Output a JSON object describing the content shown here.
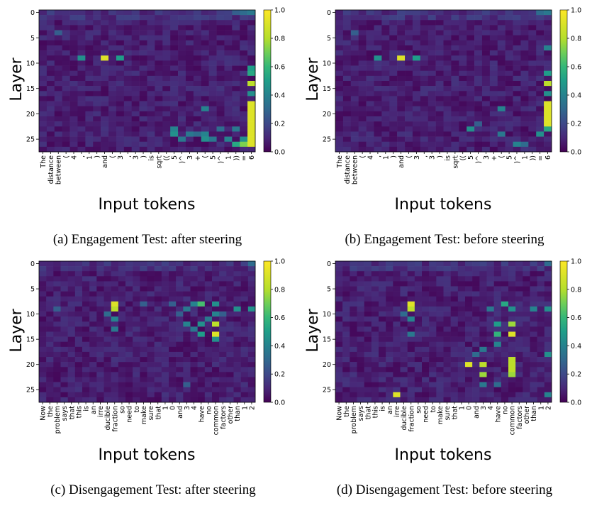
{
  "chart_data": [
    {
      "type": "heatmap",
      "caption": "(a) Engagement Test: after steering",
      "xlabel": "Input tokens",
      "ylabel": "Layer",
      "x_tokens": [
        "The",
        "distance",
        "between",
        "(",
        "4",
        ",",
        "1",
        ")",
        "and",
        "(",
        "3",
        ",",
        "3",
        ")",
        "is",
        "sqrt",
        "((",
        "5",
        ")^",
        "3",
        "+",
        "(",
        "5",
        ")^",
        "1",
        "))",
        "=",
        "6"
      ],
      "y_ticks": [
        "0",
        "5",
        "10",
        "15",
        "20",
        "25"
      ],
      "layers": 28,
      "colorbar": {
        "min": 0.0,
        "max": 1.0,
        "ticks": [
          "0.0",
          "0.2",
          "0.4",
          "0.6",
          "0.8",
          "1.0"
        ]
      },
      "hotspots": [
        {
          "x": 8,
          "y": 9,
          "v": 0.95
        },
        {
          "x": 10,
          "y": 9,
          "v": 0.55
        },
        {
          "x": 5,
          "y": 9,
          "v": 0.5
        },
        {
          "x": 27,
          "y": 18,
          "v": 0.95
        },
        {
          "x": 27,
          "y": 19,
          "v": 0.95
        },
        {
          "x": 27,
          "y": 20,
          "v": 0.95
        },
        {
          "x": 27,
          "y": 21,
          "v": 0.95
        },
        {
          "x": 27,
          "y": 22,
          "v": 0.95
        },
        {
          "x": 27,
          "y": 23,
          "v": 0.95
        },
        {
          "x": 27,
          "y": 24,
          "v": 0.95
        },
        {
          "x": 27,
          "y": 25,
          "v": 0.95
        },
        {
          "x": 27,
          "y": 26,
          "v": 0.95
        },
        {
          "x": 27,
          "y": 14,
          "v": 0.9
        },
        {
          "x": 27,
          "y": 11,
          "v": 0.55
        },
        {
          "x": 27,
          "y": 12,
          "v": 0.6
        },
        {
          "x": 27,
          "y": 16,
          "v": 0.5
        },
        {
          "x": 26,
          "y": 26,
          "v": 0.8
        },
        {
          "x": 25,
          "y": 26,
          "v": 0.6
        },
        {
          "x": 26,
          "y": 25,
          "v": 0.5
        },
        {
          "x": 17,
          "y": 23,
          "v": 0.45
        },
        {
          "x": 17,
          "y": 24,
          "v": 0.5
        },
        {
          "x": 18,
          "y": 25,
          "v": 0.4
        },
        {
          "x": 21,
          "y": 24,
          "v": 0.45
        },
        {
          "x": 21,
          "y": 25,
          "v": 0.5
        },
        {
          "x": 22,
          "y": 25,
          "v": 0.4
        },
        {
          "x": 24,
          "y": 25,
          "v": 0.45
        },
        {
          "x": 23,
          "y": 23,
          "v": 0.35
        },
        {
          "x": 25,
          "y": 23,
          "v": 0.4
        },
        {
          "x": 21,
          "y": 19,
          "v": 0.45
        },
        {
          "x": 19,
          "y": 24,
          "v": 0.4
        },
        {
          "x": 20,
          "y": 24,
          "v": 0.35
        },
        {
          "x": 2,
          "y": 4,
          "v": 0.3
        },
        {
          "x": 26,
          "y": 0,
          "v": 0.35
        },
        {
          "x": 27,
          "y": 0,
          "v": 0.4
        },
        {
          "x": 25,
          "y": 0,
          "v": 0.3
        }
      ]
    },
    {
      "type": "heatmap",
      "caption": "(b) Engagement Test: before steering",
      "xlabel": "Input tokens",
      "ylabel": "Layer",
      "x_tokens": [
        "The",
        "distance",
        "between",
        "(",
        "4",
        ",",
        "1",
        ")",
        "and",
        "(",
        "3",
        ",",
        "3",
        ")",
        "is",
        "sqrt",
        "((",
        "5",
        ")^",
        "3",
        "+",
        "(",
        "5",
        ")^",
        "1",
        "))",
        "=",
        "6"
      ],
      "y_ticks": [
        "0",
        "5",
        "10",
        "15",
        "20",
        "25"
      ],
      "layers": 28,
      "colorbar": {
        "min": 0.0,
        "max": 1.0,
        "ticks": [
          "0.0",
          "0.2",
          "0.4",
          "0.6",
          "0.8",
          "1.0"
        ]
      },
      "hotspots": [
        {
          "x": 8,
          "y": 9,
          "v": 0.95
        },
        {
          "x": 10,
          "y": 9,
          "v": 0.55
        },
        {
          "x": 5,
          "y": 9,
          "v": 0.5
        },
        {
          "x": 27,
          "y": 18,
          "v": 0.95
        },
        {
          "x": 27,
          "y": 19,
          "v": 0.95
        },
        {
          "x": 27,
          "y": 20,
          "v": 0.95
        },
        {
          "x": 27,
          "y": 21,
          "v": 0.95
        },
        {
          "x": 27,
          "y": 22,
          "v": 0.95
        },
        {
          "x": 27,
          "y": 14,
          "v": 0.9
        },
        {
          "x": 27,
          "y": 12,
          "v": 0.55
        },
        {
          "x": 27,
          "y": 7,
          "v": 0.45
        },
        {
          "x": 27,
          "y": 16,
          "v": 0.5
        },
        {
          "x": 27,
          "y": 23,
          "v": 0.6
        },
        {
          "x": 26,
          "y": 24,
          "v": 0.5
        },
        {
          "x": 17,
          "y": 23,
          "v": 0.5
        },
        {
          "x": 21,
          "y": 19,
          "v": 0.45
        },
        {
          "x": 21,
          "y": 24,
          "v": 0.4
        },
        {
          "x": 23,
          "y": 26,
          "v": 0.45
        },
        {
          "x": 24,
          "y": 26,
          "v": 0.35
        },
        {
          "x": 18,
          "y": 22,
          "v": 0.3
        },
        {
          "x": 2,
          "y": 4,
          "v": 0.3
        },
        {
          "x": 26,
          "y": 0,
          "v": 0.35
        },
        {
          "x": 27,
          "y": 0,
          "v": 0.4
        }
      ]
    },
    {
      "type": "heatmap",
      "caption": "(c) Disengagement Test: after steering",
      "xlabel": "Input tokens",
      "ylabel": "Layer",
      "x_tokens": [
        "Now",
        "the",
        "problem",
        "says",
        "that",
        "this",
        "is",
        "an",
        "irre",
        "ducible",
        "fraction",
        "so",
        "need",
        "to",
        "make",
        "sure",
        "that",
        "1",
        "0",
        "and",
        "3",
        "4",
        "have",
        "no",
        "common",
        "factors",
        "other",
        "than",
        "1",
        "2"
      ],
      "y_ticks": [
        "0",
        "5",
        "10",
        "15",
        "20",
        "25"
      ],
      "layers": 28,
      "colorbar": {
        "min": 0.0,
        "max": 1.0,
        "ticks": [
          "0.0",
          "0.2",
          "0.4",
          "0.6",
          "0.8",
          "1.0"
        ]
      },
      "hotspots": [
        {
          "x": 10,
          "y": 8,
          "v": 0.95
        },
        {
          "x": 10,
          "y": 9,
          "v": 0.9
        },
        {
          "x": 10,
          "y": 11,
          "v": 0.45
        },
        {
          "x": 10,
          "y": 13,
          "v": 0.4
        },
        {
          "x": 9,
          "y": 10,
          "v": 0.35
        },
        {
          "x": 24,
          "y": 12,
          "v": 0.9
        },
        {
          "x": 24,
          "y": 14,
          "v": 0.95
        },
        {
          "x": 22,
          "y": 12,
          "v": 0.5
        },
        {
          "x": 22,
          "y": 14,
          "v": 0.55
        },
        {
          "x": 21,
          "y": 8,
          "v": 0.45
        },
        {
          "x": 22,
          "y": 8,
          "v": 0.7
        },
        {
          "x": 24,
          "y": 8,
          "v": 0.5
        },
        {
          "x": 24,
          "y": 10,
          "v": 0.45
        },
        {
          "x": 20,
          "y": 9,
          "v": 0.4
        },
        {
          "x": 20,
          "y": 12,
          "v": 0.45
        },
        {
          "x": 21,
          "y": 13,
          "v": 0.4
        },
        {
          "x": 23,
          "y": 11,
          "v": 0.4
        },
        {
          "x": 24,
          "y": 15,
          "v": 0.5
        },
        {
          "x": 27,
          "y": 9,
          "v": 0.5
        },
        {
          "x": 29,
          "y": 9,
          "v": 0.5
        },
        {
          "x": 14,
          "y": 8,
          "v": 0.3
        },
        {
          "x": 18,
          "y": 8,
          "v": 0.3
        },
        {
          "x": 19,
          "y": 10,
          "v": 0.3
        },
        {
          "x": 25,
          "y": 10,
          "v": 0.3
        },
        {
          "x": 2,
          "y": 9,
          "v": 0.3
        },
        {
          "x": 20,
          "y": 24,
          "v": 0.3
        },
        {
          "x": 29,
          "y": 0,
          "v": 0.35
        }
      ]
    },
    {
      "type": "heatmap",
      "caption": "(d) Disengagement Test: before steering",
      "xlabel": "Input tokens",
      "ylabel": "Layer",
      "x_tokens": [
        "Now",
        "the",
        "problem",
        "says",
        "that",
        "this",
        "is",
        "an",
        "irre",
        "ducible",
        "fraction",
        "so",
        "need",
        "to",
        "make",
        "sure",
        "that",
        "1",
        "0",
        "and",
        "3",
        "4",
        "have",
        "no",
        "common",
        "factors",
        "other",
        "than",
        "1",
        "2"
      ],
      "y_ticks": [
        "0",
        "5",
        "10",
        "15",
        "20",
        "25"
      ],
      "layers": 28,
      "colorbar": {
        "min": 0.0,
        "max": 1.0,
        "ticks": [
          "0.0",
          "0.2",
          "0.4",
          "0.6",
          "0.8",
          "1.0"
        ]
      },
      "hotspots": [
        {
          "x": 10,
          "y": 8,
          "v": 0.95
        },
        {
          "x": 10,
          "y": 9,
          "v": 0.9
        },
        {
          "x": 10,
          "y": 11,
          "v": 0.45
        },
        {
          "x": 10,
          "y": 14,
          "v": 0.4
        },
        {
          "x": 9,
          "y": 10,
          "v": 0.35
        },
        {
          "x": 8,
          "y": 26,
          "v": 0.95
        },
        {
          "x": 18,
          "y": 20,
          "v": 0.95
        },
        {
          "x": 20,
          "y": 20,
          "v": 0.9
        },
        {
          "x": 20,
          "y": 22,
          "v": 0.85
        },
        {
          "x": 24,
          "y": 19,
          "v": 0.9
        },
        {
          "x": 24,
          "y": 20,
          "v": 0.9
        },
        {
          "x": 24,
          "y": 21,
          "v": 0.9
        },
        {
          "x": 24,
          "y": 22,
          "v": 0.85
        },
        {
          "x": 24,
          "y": 12,
          "v": 0.85
        },
        {
          "x": 24,
          "y": 14,
          "v": 0.95
        },
        {
          "x": 22,
          "y": 12,
          "v": 0.55
        },
        {
          "x": 22,
          "y": 14,
          "v": 0.65
        },
        {
          "x": 22,
          "y": 16,
          "v": 0.45
        },
        {
          "x": 23,
          "y": 8,
          "v": 0.6
        },
        {
          "x": 21,
          "y": 9,
          "v": 0.4
        },
        {
          "x": 24,
          "y": 9,
          "v": 0.5
        },
        {
          "x": 29,
          "y": 9,
          "v": 0.5
        },
        {
          "x": 27,
          "y": 9,
          "v": 0.45
        },
        {
          "x": 29,
          "y": 18,
          "v": 0.5
        },
        {
          "x": 19,
          "y": 18,
          "v": 0.35
        },
        {
          "x": 20,
          "y": 17,
          "v": 0.4
        },
        {
          "x": 20,
          "y": 24,
          "v": 0.4
        },
        {
          "x": 29,
          "y": 26,
          "v": 0.45
        },
        {
          "x": 22,
          "y": 24,
          "v": 0.35
        },
        {
          "x": 29,
          "y": 0,
          "v": 0.35
        }
      ]
    }
  ]
}
